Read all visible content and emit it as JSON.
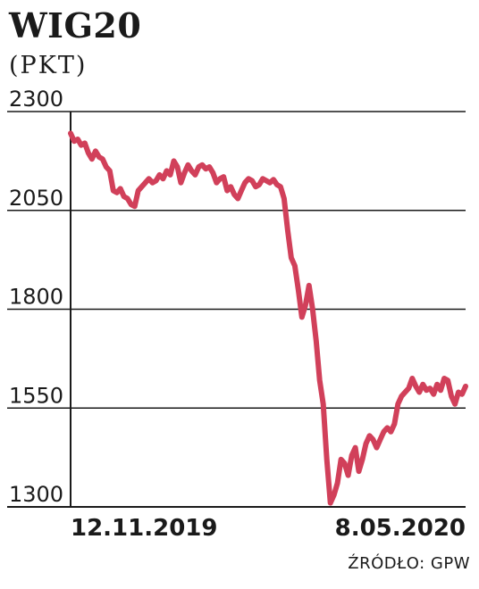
{
  "header": {
    "title": "WIG20",
    "subtitle": "(PKT)"
  },
  "source": "ŹRÓDŁO: GPW",
  "colors": {
    "line": "#d1405a",
    "axis": "#1a1a1a",
    "grid": "#1a1a1a"
  },
  "chart_data": {
    "type": "line",
    "title": "WIG20",
    "ylabel": "(PKT)",
    "xlabel": "",
    "ylim": [
      1300,
      2300
    ],
    "yticks": [
      "2300",
      "2050",
      "1800",
      "1550",
      "1300"
    ],
    "x_labels": {
      "start": "12.11.2019",
      "end": "8.05.2020"
    },
    "grid": "horizontal",
    "series": [
      {
        "values": [
          2245,
          2225,
          2230,
          2215,
          2220,
          2195,
          2180,
          2200,
          2185,
          2180,
          2160,
          2150,
          2100,
          2095,
          2105,
          2085,
          2080,
          2065,
          2060,
          2100,
          2110,
          2120,
          2130,
          2120,
          2125,
          2140,
          2130,
          2150,
          2140,
          2175,
          2160,
          2120,
          2145,
          2165,
          2150,
          2140,
          2160,
          2165,
          2155,
          2160,
          2145,
          2120,
          2130,
          2135,
          2100,
          2110,
          2090,
          2080,
          2100,
          2120,
          2130,
          2125,
          2110,
          2115,
          2130,
          2125,
          2120,
          2128,
          2115,
          2110,
          2080,
          2000,
          1930,
          1910,
          1850,
          1780,
          1810,
          1860,
          1800,
          1720,
          1620,
          1560,
          1420,
          1310,
          1330,
          1360,
          1420,
          1410,
          1380,
          1430,
          1450,
          1390,
          1420,
          1460,
          1480,
          1470,
          1450,
          1470,
          1490,
          1500,
          1490,
          1510,
          1560,
          1580,
          1590,
          1600,
          1625,
          1605,
          1590,
          1610,
          1595,
          1600,
          1585,
          1610,
          1595,
          1625,
          1620,
          1580,
          1560,
          1590,
          1585,
          1605
        ]
      }
    ]
  }
}
